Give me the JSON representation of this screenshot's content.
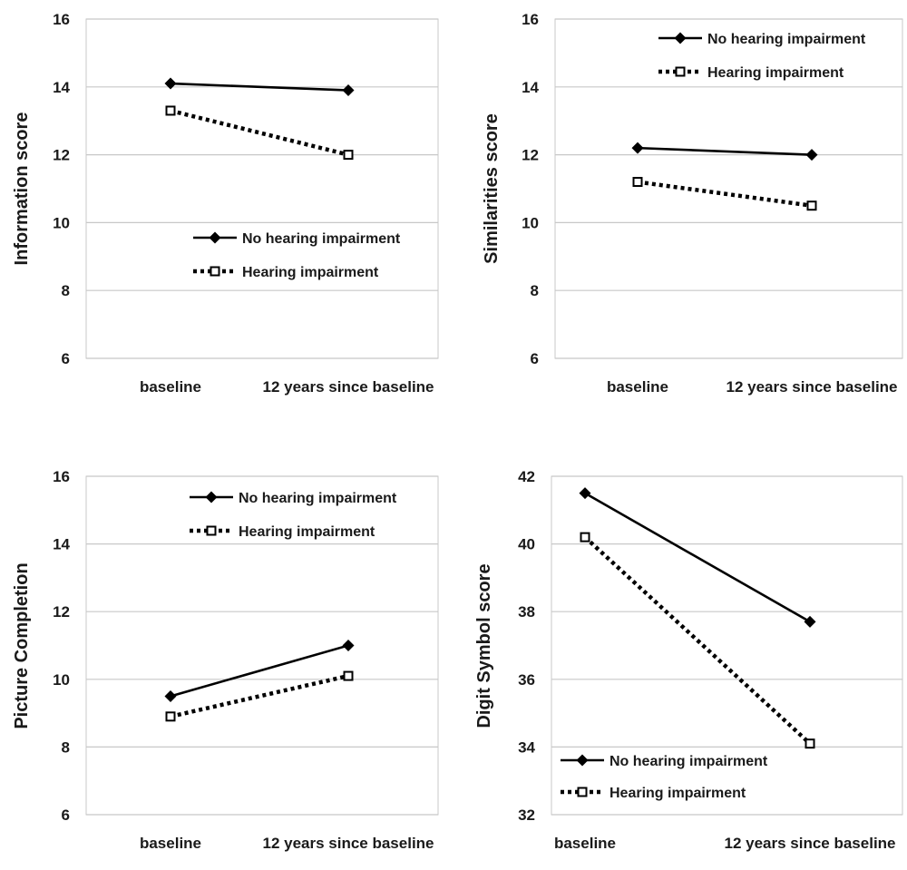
{
  "figure": {
    "series_names": [
      "No hearing impairment",
      "Hearing impairment"
    ],
    "colors": {
      "grid": "#c8c8c8",
      "line": "#000000",
      "text": "#1a1a1a",
      "background": "#ffffff"
    }
  },
  "chart_data": [
    {
      "type": "line",
      "ylabel": "Information score",
      "categories": [
        "baseline",
        "12 years since baseline"
      ],
      "yticks": [
        6,
        8,
        10,
        12,
        14,
        16
      ],
      "ylim": [
        6,
        16
      ],
      "legend_position": "middle-right",
      "series": [
        {
          "name": "No hearing impairment",
          "values": [
            14.1,
            13.9
          ]
        },
        {
          "name": "Hearing impairment",
          "values": [
            13.3,
            12.0
          ]
        }
      ]
    },
    {
      "type": "line",
      "ylabel": "Similarities score",
      "categories": [
        "baseline",
        "12 years since baseline"
      ],
      "yticks": [
        6,
        8,
        10,
        12,
        14,
        16
      ],
      "ylim": [
        6,
        16
      ],
      "legend_position": "top-right",
      "series": [
        {
          "name": "No hearing impairment",
          "values": [
            12.2,
            12.0
          ]
        },
        {
          "name": "Hearing impairment",
          "values": [
            11.2,
            10.5
          ]
        }
      ]
    },
    {
      "type": "line",
      "ylabel": "Picture Completion",
      "categories": [
        "baseline",
        "12 years since baseline"
      ],
      "yticks": [
        6,
        8,
        10,
        12,
        14,
        16
      ],
      "ylim": [
        6,
        16
      ],
      "legend_position": "top-right",
      "series": [
        {
          "name": "No hearing impairment",
          "values": [
            9.5,
            11.0
          ]
        },
        {
          "name": "Hearing impairment",
          "values": [
            8.9,
            10.1
          ]
        }
      ]
    },
    {
      "type": "line",
      "ylabel": "Digit Symbol score",
      "categories": [
        "baseline",
        "12 years since baseline"
      ],
      "yticks": [
        32,
        34,
        36,
        38,
        40,
        42
      ],
      "ylim": [
        32,
        42
      ],
      "legend_position": "bottom-left",
      "series": [
        {
          "name": "No hearing impairment",
          "values": [
            41.5,
            37.7
          ]
        },
        {
          "name": "Hearing impairment",
          "values": [
            40.2,
            34.1
          ]
        }
      ]
    }
  ]
}
